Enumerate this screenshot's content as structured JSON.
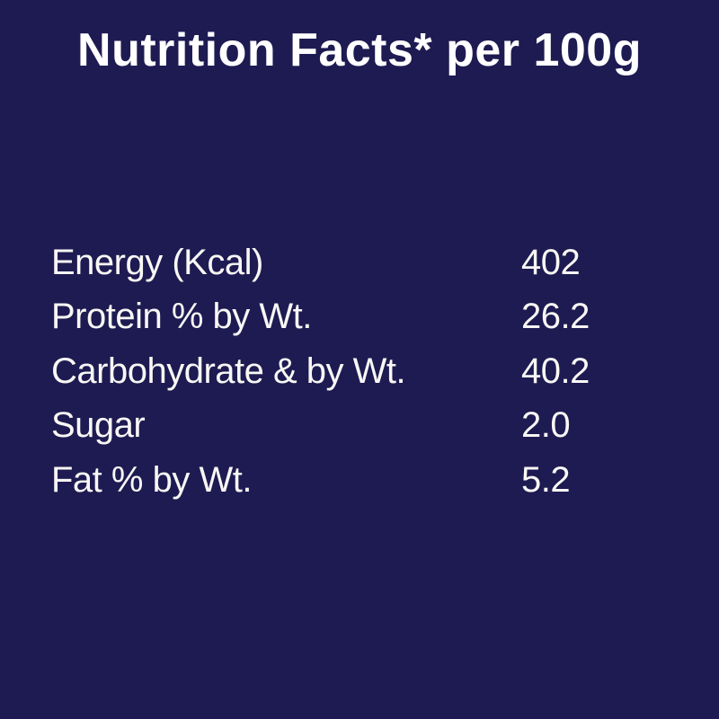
{
  "page": {
    "background_color": "#1e1b52",
    "text_color": "#ffffff"
  },
  "header": {
    "title": "Nutrition Facts* per 100g"
  },
  "nutrition_table": {
    "rows": [
      {
        "label": "Energy (Kcal)",
        "value": "402"
      },
      {
        "label": "Protein % by Wt.",
        "value": "26.2"
      },
      {
        "label": "Carbohydrate & by Wt.",
        "value": "40.2"
      },
      {
        "label": "Sugar",
        "value": "2.0"
      },
      {
        "label": "Fat % by Wt.",
        "value": "5.2"
      }
    ]
  }
}
